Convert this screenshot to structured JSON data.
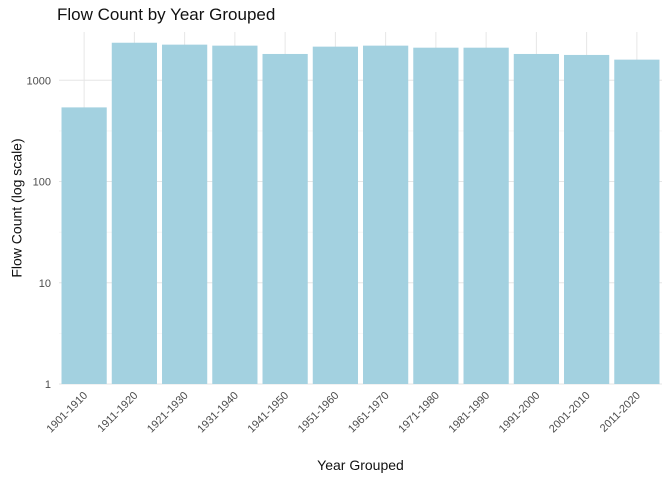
{
  "chart_data": {
    "type": "bar",
    "title": "Flow Count by Year Grouped",
    "xlabel": "Year Grouped",
    "ylabel": "Flow Count (log scale)",
    "y_scale": "log10",
    "ylim": [
      1,
      3000
    ],
    "grid": true,
    "y_ticks": [
      1,
      10,
      100,
      1000
    ],
    "y_tick_labels": [
      "1",
      "10",
      "100",
      "1000"
    ],
    "categories": [
      "1901-1910",
      "1911-1920",
      "1921-1930",
      "1931-1940",
      "1941-1950",
      "1951-1960",
      "1961-1970",
      "1971-1980",
      "1981-1990",
      "1991-2000",
      "2001-2010",
      "2011-2020"
    ],
    "values": [
      540,
      2350,
      2250,
      2200,
      1820,
      2150,
      2200,
      2100,
      2100,
      1820,
      1780,
      1600
    ],
    "bar_color": "#a3d1e0"
  }
}
